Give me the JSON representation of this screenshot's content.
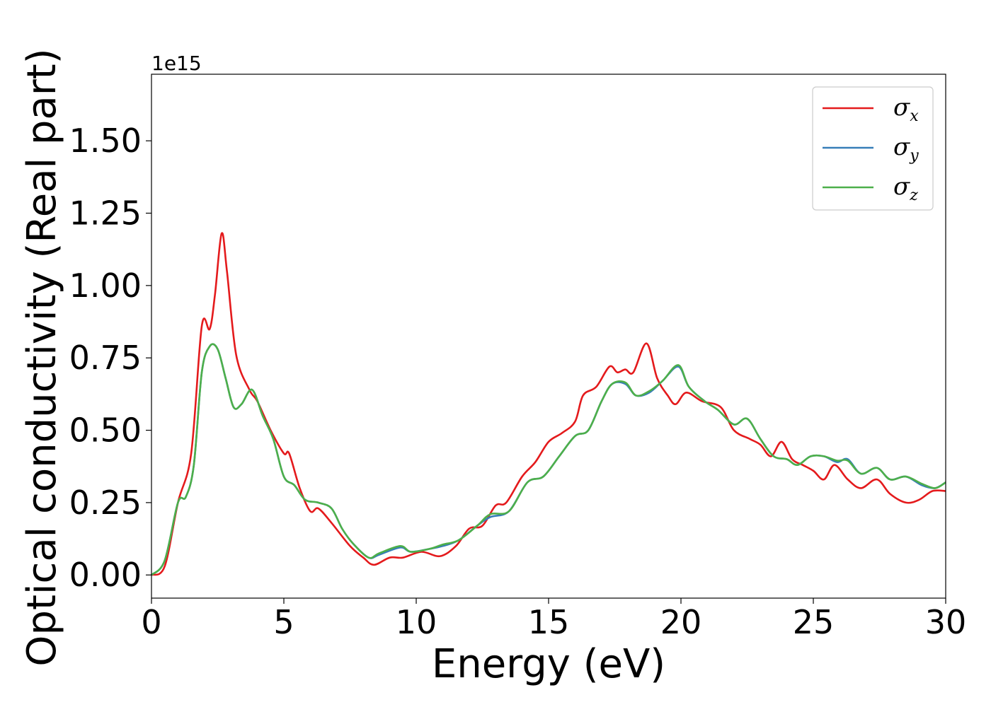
{
  "chart_data": {
    "type": "line",
    "title": "",
    "xlabel": "Energy (eV)",
    "ylabel": "Optical conductivity (Real part)",
    "y_offset_label": "1e15",
    "xlim": [
      0,
      30
    ],
    "ylim": [
      -0.08,
      1.73
    ],
    "x_ticks": [
      0,
      5,
      10,
      15,
      20,
      25,
      30
    ],
    "x_tick_labels": [
      "0",
      "5",
      "10",
      "15",
      "20",
      "25",
      "30"
    ],
    "y_ticks": [
      0,
      0.25,
      0.5,
      0.75,
      1.0,
      1.25,
      1.5
    ],
    "y_tick_labels": [
      "0.00",
      "0.25",
      "0.50",
      "0.75",
      "1.00",
      "1.25",
      "1.50"
    ],
    "grid": false,
    "legend_position": "top-right",
    "series": [
      {
        "name": "σx",
        "symbol": "σ",
        "subscript": "x",
        "color": "#e41a1c",
        "points": [
          [
            0,
            0
          ],
          [
            0.5,
            0.03
          ],
          [
            1,
            0.25
          ],
          [
            1.5,
            0.42
          ],
          [
            1.9,
            0.86
          ],
          [
            2.2,
            0.85
          ],
          [
            2.4,
            0.97
          ],
          [
            2.65,
            1.18
          ],
          [
            2.85,
            1.05
          ],
          [
            3.2,
            0.76
          ],
          [
            3.7,
            0.64
          ],
          [
            4.0,
            0.6
          ],
          [
            4.5,
            0.5
          ],
          [
            5.0,
            0.42
          ],
          [
            5.2,
            0.42
          ],
          [
            5.6,
            0.3
          ],
          [
            6.0,
            0.22
          ],
          [
            6.3,
            0.23
          ],
          [
            6.8,
            0.18
          ],
          [
            7.5,
            0.1
          ],
          [
            8.0,
            0.06
          ],
          [
            8.4,
            0.035
          ],
          [
            9.0,
            0.06
          ],
          [
            9.5,
            0.06
          ],
          [
            10.2,
            0.08
          ],
          [
            10.9,
            0.065
          ],
          [
            11.5,
            0.1
          ],
          [
            12.0,
            0.16
          ],
          [
            12.5,
            0.17
          ],
          [
            13.0,
            0.24
          ],
          [
            13.4,
            0.25
          ],
          [
            14.0,
            0.34
          ],
          [
            14.5,
            0.39
          ],
          [
            15.0,
            0.46
          ],
          [
            15.5,
            0.49
          ],
          [
            16.0,
            0.53
          ],
          [
            16.3,
            0.62
          ],
          [
            16.8,
            0.65
          ],
          [
            17.3,
            0.72
          ],
          [
            17.6,
            0.7
          ],
          [
            17.9,
            0.71
          ],
          [
            18.2,
            0.7
          ],
          [
            18.7,
            0.8
          ],
          [
            19.1,
            0.68
          ],
          [
            19.5,
            0.62
          ],
          [
            19.8,
            0.59
          ],
          [
            20.2,
            0.63
          ],
          [
            20.8,
            0.6
          ],
          [
            21.5,
            0.58
          ],
          [
            22.0,
            0.5
          ],
          [
            22.6,
            0.47
          ],
          [
            23.0,
            0.45
          ],
          [
            23.4,
            0.41
          ],
          [
            23.8,
            0.46
          ],
          [
            24.2,
            0.4
          ],
          [
            24.6,
            0.38
          ],
          [
            25.0,
            0.36
          ],
          [
            25.4,
            0.33
          ],
          [
            25.8,
            0.38
          ],
          [
            26.3,
            0.33
          ],
          [
            26.8,
            0.3
          ],
          [
            27.4,
            0.33
          ],
          [
            27.9,
            0.28
          ],
          [
            28.5,
            0.25
          ],
          [
            29.0,
            0.26
          ],
          [
            29.5,
            0.29
          ],
          [
            30,
            0.29
          ]
        ]
      },
      {
        "name": "σy",
        "symbol": "σ",
        "subscript": "y",
        "color": "#377eb8",
        "points": [
          [
            0,
            0
          ],
          [
            0.5,
            0.05
          ],
          [
            1,
            0.25
          ],
          [
            1.3,
            0.27
          ],
          [
            1.6,
            0.38
          ],
          [
            1.9,
            0.7
          ],
          [
            2.2,
            0.79
          ],
          [
            2.5,
            0.78
          ],
          [
            2.8,
            0.68
          ],
          [
            3.1,
            0.58
          ],
          [
            3.4,
            0.59
          ],
          [
            3.8,
            0.64
          ],
          [
            4.2,
            0.55
          ],
          [
            4.6,
            0.47
          ],
          [
            5.0,
            0.34
          ],
          [
            5.4,
            0.31
          ],
          [
            5.8,
            0.26
          ],
          [
            6.3,
            0.25
          ],
          [
            6.8,
            0.23
          ],
          [
            7.2,
            0.16
          ],
          [
            7.6,
            0.11
          ],
          [
            8.2,
            0.06
          ],
          [
            8.6,
            0.07
          ],
          [
            9.4,
            0.095
          ],
          [
            9.8,
            0.08
          ],
          [
            10.5,
            0.09
          ],
          [
            11.0,
            0.1
          ],
          [
            11.6,
            0.12
          ],
          [
            12.3,
            0.17
          ],
          [
            12.8,
            0.2
          ],
          [
            13.5,
            0.22
          ],
          [
            14.2,
            0.32
          ],
          [
            14.8,
            0.34
          ],
          [
            15.4,
            0.41
          ],
          [
            16.0,
            0.48
          ],
          [
            16.5,
            0.5
          ],
          [
            17.0,
            0.6
          ],
          [
            17.4,
            0.66
          ],
          [
            17.9,
            0.66
          ],
          [
            18.3,
            0.62
          ],
          [
            18.8,
            0.63
          ],
          [
            19.3,
            0.67
          ],
          [
            19.9,
            0.72
          ],
          [
            20.3,
            0.65
          ],
          [
            20.9,
            0.6
          ],
          [
            21.4,
            0.57
          ],
          [
            22.0,
            0.52
          ],
          [
            22.5,
            0.54
          ],
          [
            23.0,
            0.47
          ],
          [
            23.5,
            0.41
          ],
          [
            24.0,
            0.4
          ],
          [
            24.4,
            0.38
          ],
          [
            24.9,
            0.41
          ],
          [
            25.4,
            0.41
          ],
          [
            25.9,
            0.39
          ],
          [
            26.3,
            0.4
          ],
          [
            26.8,
            0.35
          ],
          [
            27.4,
            0.37
          ],
          [
            27.9,
            0.33
          ],
          [
            28.5,
            0.34
          ],
          [
            29.1,
            0.31
          ],
          [
            29.6,
            0.3
          ],
          [
            30,
            0.32
          ]
        ]
      },
      {
        "name": "σz",
        "symbol": "σ",
        "subscript": "z",
        "color": "#4daf4a",
        "points": [
          [
            0,
            0
          ],
          [
            0.5,
            0.05
          ],
          [
            1,
            0.25
          ],
          [
            1.3,
            0.27
          ],
          [
            1.6,
            0.38
          ],
          [
            1.9,
            0.7
          ],
          [
            2.2,
            0.79
          ],
          [
            2.5,
            0.78
          ],
          [
            2.8,
            0.68
          ],
          [
            3.1,
            0.58
          ],
          [
            3.4,
            0.59
          ],
          [
            3.8,
            0.64
          ],
          [
            4.2,
            0.55
          ],
          [
            4.6,
            0.47
          ],
          [
            5.0,
            0.34
          ],
          [
            5.4,
            0.31
          ],
          [
            5.8,
            0.26
          ],
          [
            6.3,
            0.25
          ],
          [
            6.8,
            0.23
          ],
          [
            7.2,
            0.16
          ],
          [
            7.6,
            0.11
          ],
          [
            8.2,
            0.06
          ],
          [
            8.6,
            0.075
          ],
          [
            9.4,
            0.1
          ],
          [
            9.8,
            0.08
          ],
          [
            10.5,
            0.09
          ],
          [
            11.0,
            0.105
          ],
          [
            11.6,
            0.12
          ],
          [
            12.3,
            0.17
          ],
          [
            12.8,
            0.21
          ],
          [
            13.5,
            0.22
          ],
          [
            14.2,
            0.32
          ],
          [
            14.8,
            0.34
          ],
          [
            15.4,
            0.41
          ],
          [
            16.0,
            0.48
          ],
          [
            16.5,
            0.5
          ],
          [
            17.0,
            0.6
          ],
          [
            17.4,
            0.66
          ],
          [
            17.9,
            0.665
          ],
          [
            18.3,
            0.62
          ],
          [
            18.8,
            0.635
          ],
          [
            19.3,
            0.67
          ],
          [
            19.9,
            0.725
          ],
          [
            20.3,
            0.65
          ],
          [
            20.9,
            0.6
          ],
          [
            21.4,
            0.57
          ],
          [
            22.0,
            0.52
          ],
          [
            22.5,
            0.54
          ],
          [
            23.0,
            0.47
          ],
          [
            23.5,
            0.41
          ],
          [
            24.0,
            0.4
          ],
          [
            24.4,
            0.38
          ],
          [
            24.9,
            0.41
          ],
          [
            25.4,
            0.41
          ],
          [
            25.9,
            0.395
          ],
          [
            26.3,
            0.395
          ],
          [
            26.8,
            0.35
          ],
          [
            27.4,
            0.37
          ],
          [
            27.9,
            0.33
          ],
          [
            28.5,
            0.34
          ],
          [
            29.1,
            0.315
          ],
          [
            29.6,
            0.3
          ],
          [
            30,
            0.32
          ]
        ]
      }
    ]
  }
}
